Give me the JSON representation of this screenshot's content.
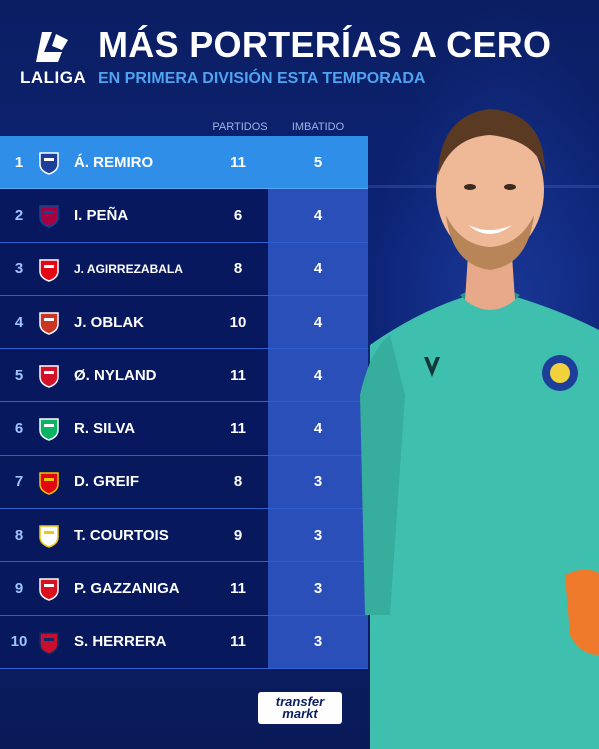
{
  "league": {
    "logo_text": "LALIGA"
  },
  "title": "MÁS PORTERÍAS A CERO",
  "subtitle": "EN PRIMERA DIVISIÓN ESTA TEMPORADA",
  "columns": {
    "matches": "PARTIDOS",
    "clean_sheets": "IMBATIDO"
  },
  "rows": [
    {
      "rank": "1",
      "name": "Á. REMIRO",
      "matches": "11",
      "clean_sheets": "5",
      "crest": "real-sociedad-crest"
    },
    {
      "rank": "2",
      "name": "I. PEÑA",
      "matches": "6",
      "clean_sheets": "4",
      "crest": "barcelona-crest"
    },
    {
      "rank": "3",
      "name": "J. AGIRREZABALA",
      "matches": "8",
      "clean_sheets": "4",
      "crest": "athletic-club-crest"
    },
    {
      "rank": "4",
      "name": "J. OBLAK",
      "matches": "10",
      "clean_sheets": "4",
      "crest": "atletico-madrid-crest"
    },
    {
      "rank": "5",
      "name": "Ø. NYLAND",
      "matches": "11",
      "clean_sheets": "4",
      "crest": "sevilla-crest"
    },
    {
      "rank": "6",
      "name": "R. SILVA",
      "matches": "11",
      "clean_sheets": "4",
      "crest": "real-betis-crest"
    },
    {
      "rank": "7",
      "name": "D. GREIF",
      "matches": "8",
      "clean_sheets": "3",
      "crest": "mallorca-crest"
    },
    {
      "rank": "8",
      "name": "T. COURTOIS",
      "matches": "9",
      "clean_sheets": "3",
      "crest": "real-madrid-crest"
    },
    {
      "rank": "9",
      "name": "P. GAZZANIGA",
      "matches": "11",
      "clean_sheets": "3",
      "crest": "girona-crest"
    },
    {
      "rank": "10",
      "name": "S. HERRERA",
      "matches": "11",
      "clean_sheets": "3",
      "crest": "osasuna-crest"
    }
  ],
  "footer": {
    "brand_line1": "transfer",
    "brand_line2": "markt"
  },
  "colors": {
    "background": "#0d2477",
    "highlight": "#2f8fe8",
    "accent": "#4fa3f0",
    "jersey": "#3fbfae"
  }
}
